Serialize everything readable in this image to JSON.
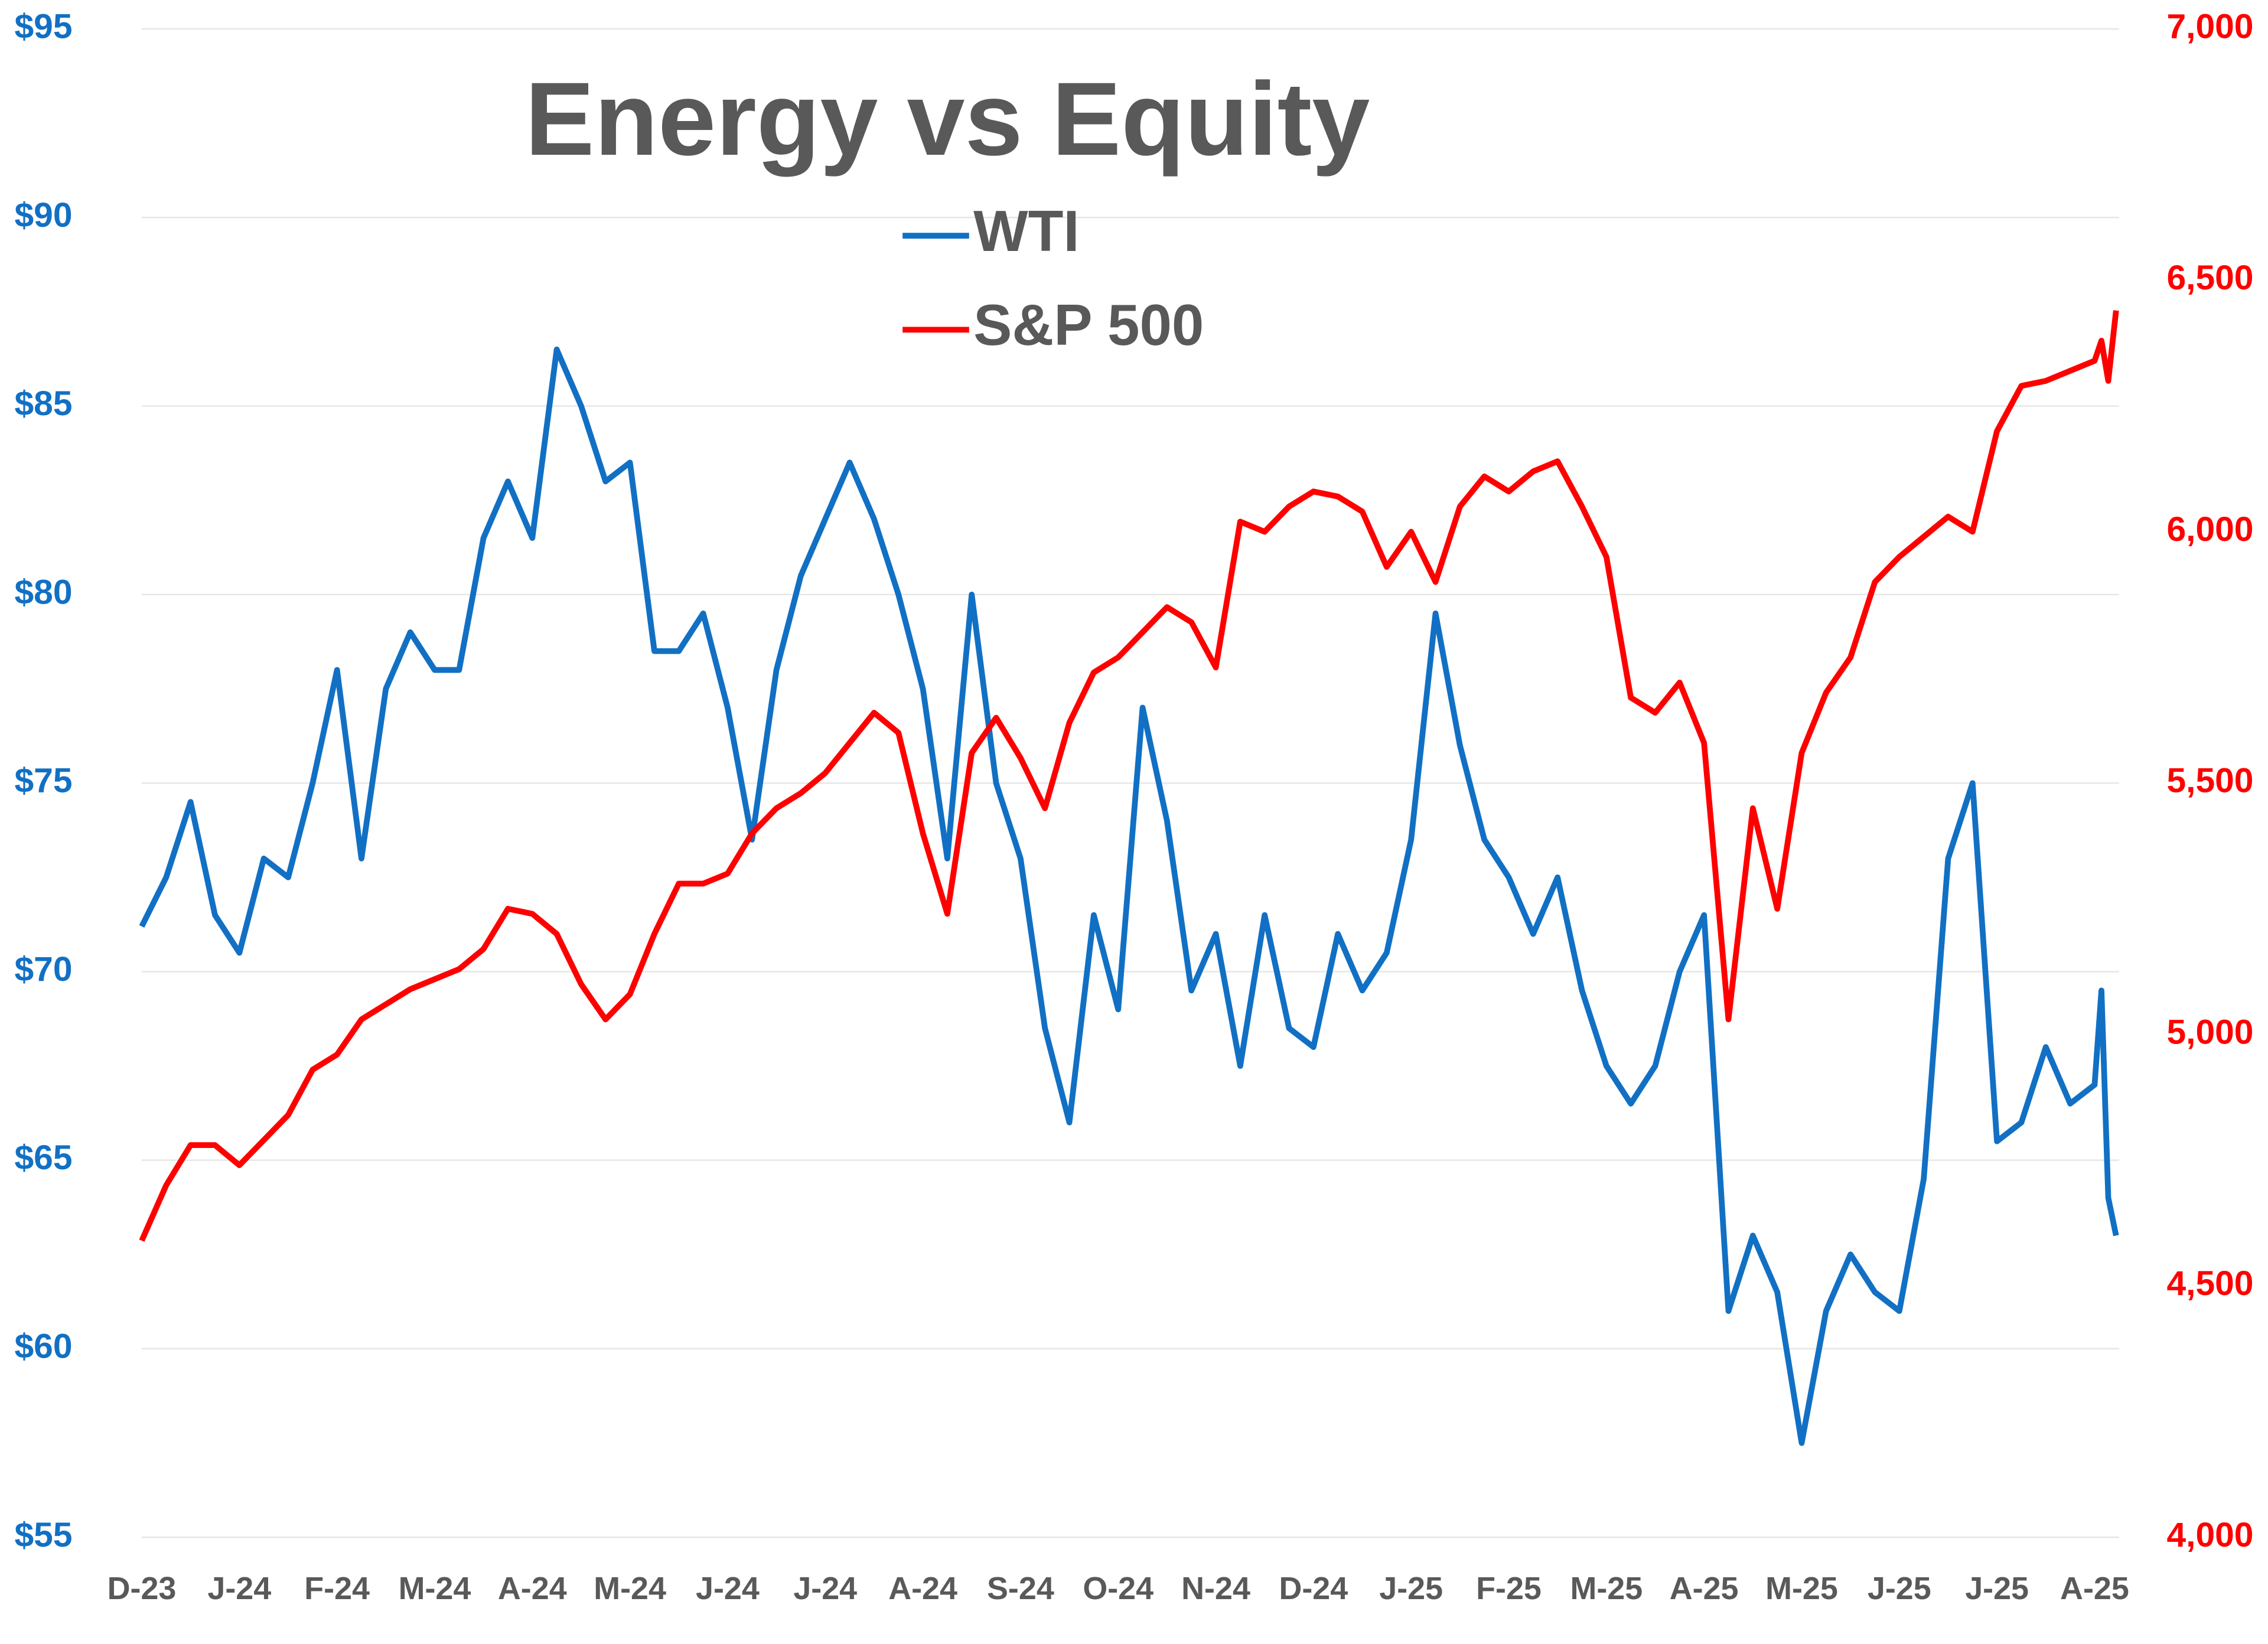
{
  "chart_data": {
    "type": "line",
    "title": "Energy vs Equity",
    "x": [
      0,
      0.25,
      0.5,
      0.75,
      1,
      1.25,
      1.5,
      1.75,
      2,
      2.25,
      2.5,
      2.75,
      3,
      3.25,
      3.5,
      3.75,
      4,
      4.25,
      4.5,
      4.75,
      5,
      5.25,
      5.5,
      5.75,
      6,
      6.25,
      6.5,
      6.75,
      7,
      7.25,
      7.5,
      7.75,
      8,
      8.25,
      8.5,
      8.75,
      9,
      9.25,
      9.5,
      9.75,
      10,
      10.25,
      10.5,
      10.75,
      11,
      11.25,
      11.5,
      11.75,
      12,
      12.25,
      12.5,
      12.75,
      13,
      13.25,
      13.5,
      13.75,
      14,
      14.25,
      14.5,
      14.75,
      15,
      15.25,
      15.5,
      15.75,
      16,
      16.25,
      16.5,
      16.75,
      17,
      17.25,
      17.5,
      17.75,
      18,
      18.25,
      18.5,
      18.75,
      19,
      19.25,
      19.5,
      19.75,
      20,
      20.07,
      20.14,
      20.22
    ],
    "xlim": [
      0,
      20.25
    ],
    "xticks": [
      {
        "value": 0,
        "label": "D-23"
      },
      {
        "value": 1,
        "label": "J-24"
      },
      {
        "value": 2,
        "label": "F-24"
      },
      {
        "value": 3,
        "label": "M-24"
      },
      {
        "value": 4,
        "label": "A-24"
      },
      {
        "value": 5,
        "label": "M-24"
      },
      {
        "value": 6,
        "label": "J-24"
      },
      {
        "value": 7,
        "label": "J-24"
      },
      {
        "value": 8,
        "label": "A-24"
      },
      {
        "value": 9,
        "label": "S-24"
      },
      {
        "value": 10,
        "label": "O-24"
      },
      {
        "value": 11,
        "label": "N-24"
      },
      {
        "value": 12,
        "label": "D-24"
      },
      {
        "value": 13,
        "label": "J-25"
      },
      {
        "value": 14,
        "label": "F-25"
      },
      {
        "value": 15,
        "label": "M-25"
      },
      {
        "value": 16,
        "label": "A-25"
      },
      {
        "value": 17,
        "label": "M-25"
      },
      {
        "value": 18,
        "label": "J-25"
      },
      {
        "value": 19,
        "label": "J-25"
      },
      {
        "value": 20,
        "label": "A-25"
      }
    ],
    "ylim": [
      55,
      95
    ],
    "yticks": [
      {
        "value": 55,
        "label": "$55"
      },
      {
        "value": 60,
        "label": "$60"
      },
      {
        "value": 65,
        "label": "$65"
      },
      {
        "value": 70,
        "label": "$70"
      },
      {
        "value": 75,
        "label": "$75"
      },
      {
        "value": 80,
        "label": "$80"
      },
      {
        "value": 85,
        "label": "$85"
      },
      {
        "value": 90,
        "label": "$90"
      },
      {
        "value": 95,
        "label": "$95"
      }
    ],
    "y2lim": [
      4000,
      7000
    ],
    "y2ticks": [
      {
        "value": 4000,
        "label": "4,000"
      },
      {
        "value": 4500,
        "label": "4,500"
      },
      {
        "value": 5000,
        "label": "5,000"
      },
      {
        "value": 5500,
        "label": "5,500"
      },
      {
        "value": 6000,
        "label": "6,000"
      },
      {
        "value": 6500,
        "label": "6,500"
      },
      {
        "value": 7000,
        "label": "7,000"
      }
    ],
    "grid": true,
    "legend": "top",
    "series": [
      {
        "name": "WTI",
        "color": "#1170c4",
        "values": [
          71.2,
          72.5,
          74.5,
          71.5,
          70.5,
          73,
          72.5,
          75,
          78,
          73,
          77.5,
          79,
          78,
          78,
          81.5,
          83,
          81.5,
          86.5,
          85,
          83,
          83.5,
          78.5,
          78.5,
          79.5,
          77,
          73.5,
          78,
          80.5,
          82,
          83.5,
          82,
          80,
          77.5,
          73,
          80,
          75,
          73,
          68.5,
          66,
          71.5,
          69,
          77,
          74,
          69.5,
          71,
          67.5,
          71.5,
          68.5,
          68,
          71,
          69.5,
          70.5,
          73.5,
          79.5,
          76,
          73.5,
          72.5,
          71,
          72.5,
          69.5,
          67.5,
          66.5,
          67.5,
          70,
          71.5,
          61,
          63,
          61.5,
          57.5,
          61,
          62.5,
          61.5,
          61,
          64.5,
          73,
          75,
          65.5,
          66,
          68,
          66.5,
          67,
          69.5,
          64,
          63
        ]
      },
      {
        "name": "S&P 500",
        "color": "#ff0000",
        "axis": "y2",
        "values": [
          4590,
          4700,
          4780,
          4780,
          4740,
          4790,
          4840,
          4930,
          4960,
          5030,
          5060,
          5090,
          5110,
          5130,
          5170,
          5250,
          5240,
          5200,
          5100,
          5030,
          5080,
          5200,
          5300,
          5300,
          5320,
          5400,
          5450,
          5480,
          5520,
          5580,
          5640,
          5600,
          5400,
          5240,
          5560,
          5630,
          5550,
          5450,
          5620,
          5720,
          5750,
          5800,
          5850,
          5820,
          5730,
          6020,
          6000,
          6050,
          6080,
          6070,
          6040,
          5930,
          6000,
          5900,
          6050,
          6110,
          6080,
          6120,
          6140,
          6050,
          5950,
          5670,
          5640,
          5700,
          5580,
          5030,
          5450,
          5250,
          5560,
          5680,
          5750,
          5900,
          5950,
          5990,
          6030,
          6000,
          6200,
          6290,
          6300,
          6320,
          6340,
          6380,
          6300,
          6440
        ]
      }
    ]
  }
}
